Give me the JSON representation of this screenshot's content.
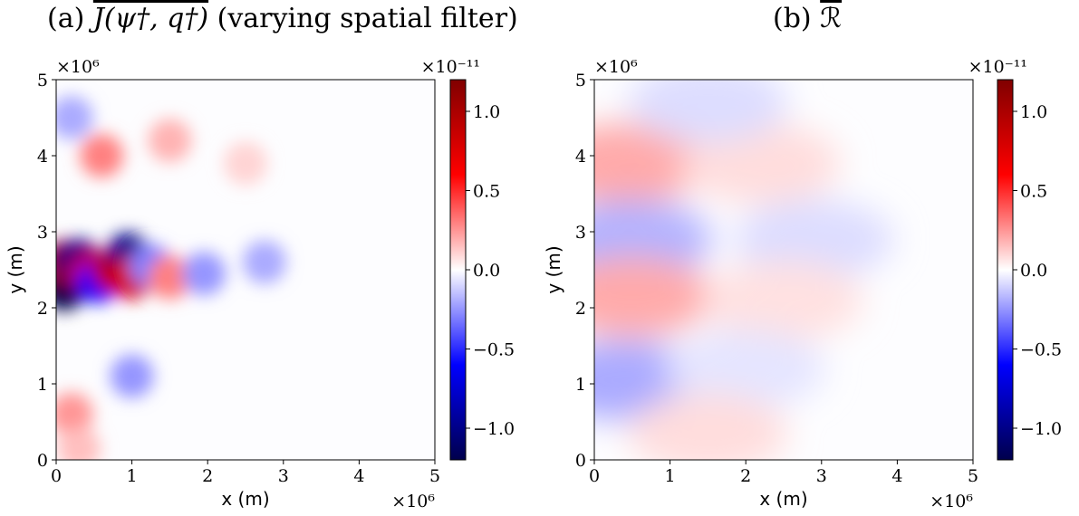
{
  "chart_data": [
    {
      "type": "heatmap",
      "title_prefix": "(a)",
      "title_math": "J(ψ†, q†)",
      "title_suffix": "(varying spatial filter)",
      "xlabel": "x (m)",
      "ylabel": "y (m)",
      "x_ticks": [
        "0",
        "1",
        "2",
        "3",
        "4",
        "5"
      ],
      "y_ticks": [
        "0",
        "1",
        "2",
        "3",
        "4",
        "5"
      ],
      "x_multiplier": "×10⁶",
      "y_multiplier": "×10⁶",
      "xlim": [
        0,
        5
      ],
      "ylim": [
        0,
        5
      ],
      "colorbar": {
        "range": [
          -1.2,
          1.2
        ],
        "ticks": [
          "−1.0",
          "−0.5",
          "0.0",
          "0.5",
          "1.0"
        ],
        "tick_values": [
          -1.0,
          -0.5,
          0.0,
          0.5,
          1.0
        ],
        "multiplier": "×10⁻¹¹",
        "colormap": "seismic"
      },
      "features": [
        {
          "x": 0.1,
          "y": 2.25,
          "value": -1.2
        },
        {
          "x": 0.1,
          "y": 2.6,
          "value": 1.1
        },
        {
          "x": 0.3,
          "y": 2.62,
          "value": -1.0
        },
        {
          "x": 0.45,
          "y": 2.45,
          "value": 0.8
        },
        {
          "x": 0.55,
          "y": 2.35,
          "value": -0.6
        },
        {
          "x": 0.75,
          "y": 2.5,
          "value": 0.9
        },
        {
          "x": 0.95,
          "y": 2.7,
          "value": -1.0
        },
        {
          "x": 1.0,
          "y": 2.4,
          "value": 0.8
        },
        {
          "x": 1.25,
          "y": 2.55,
          "value": -0.3
        },
        {
          "x": 1.5,
          "y": 2.4,
          "value": 0.3
        },
        {
          "x": 1.95,
          "y": 2.45,
          "value": -0.25
        },
        {
          "x": 2.75,
          "y": 2.6,
          "value": -0.2
        },
        {
          "x": 0.6,
          "y": 4.0,
          "value": 0.3
        },
        {
          "x": 1.5,
          "y": 4.2,
          "value": 0.18
        },
        {
          "x": 1.0,
          "y": 1.1,
          "value": -0.25
        },
        {
          "x": 0.2,
          "y": 0.6,
          "value": 0.25
        },
        {
          "x": 0.2,
          "y": 4.5,
          "value": -0.2
        },
        {
          "x": 2.5,
          "y": 3.9,
          "value": 0.1
        },
        {
          "x": 0.3,
          "y": 0.15,
          "value": 0.15
        }
      ]
    },
    {
      "type": "heatmap",
      "title_prefix": "(b)",
      "title_math": "ℛ",
      "title_suffix": "",
      "xlabel": "x (m)",
      "ylabel": "y (m)",
      "x_ticks": [
        "0",
        "1",
        "2",
        "3",
        "4",
        "5"
      ],
      "y_ticks": [
        "0",
        "1",
        "2",
        "3",
        "4",
        "5"
      ],
      "x_multiplier": "×10⁶",
      "y_multiplier": "×10⁶",
      "xlim": [
        0,
        5
      ],
      "ylim": [
        0,
        5
      ],
      "colorbar": {
        "range": [
          -1.2,
          1.2
        ],
        "ticks": [
          "−1.0",
          "−0.5",
          "0.0",
          "0.5",
          "1.0"
        ],
        "tick_values": [
          -1.0,
          -0.5,
          0.0,
          0.5,
          1.0
        ],
        "multiplier": "×10⁻¹¹",
        "colormap": "seismic"
      },
      "features": [
        {
          "x": 0.4,
          "y": 3.9,
          "value": 0.2
        },
        {
          "x": 2.2,
          "y": 3.9,
          "value": 0.08
        },
        {
          "x": 0.5,
          "y": 2.9,
          "value": -0.18
        },
        {
          "x": 2.9,
          "y": 2.9,
          "value": -0.08
        },
        {
          "x": 0.5,
          "y": 2.15,
          "value": 0.2
        },
        {
          "x": 2.5,
          "y": 2.1,
          "value": 0.07
        },
        {
          "x": 0.4,
          "y": 1.05,
          "value": -0.2
        },
        {
          "x": 2.0,
          "y": 1.2,
          "value": -0.06
        },
        {
          "x": 1.5,
          "y": 4.7,
          "value": -0.08
        },
        {
          "x": 1.5,
          "y": 0.35,
          "value": 0.08
        }
      ]
    }
  ]
}
